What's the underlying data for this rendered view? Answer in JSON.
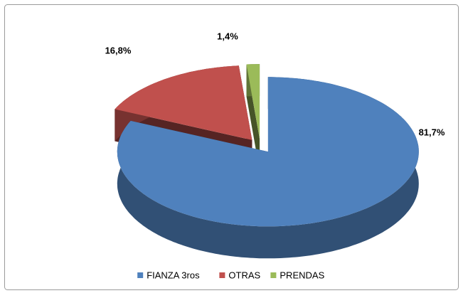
{
  "chart_data": {
    "type": "pie3d",
    "categories": [
      "FIANZA 3ros",
      "OTRAS",
      "PRENDAS"
    ],
    "values": [
      81.7,
      16.8,
      1.4
    ],
    "value_labels": [
      "81,7%",
      "16,8%",
      "1,4%"
    ],
    "colors": [
      "#4f81bd",
      "#c0504d",
      "#9bbb59"
    ],
    "legend": "bottom"
  }
}
